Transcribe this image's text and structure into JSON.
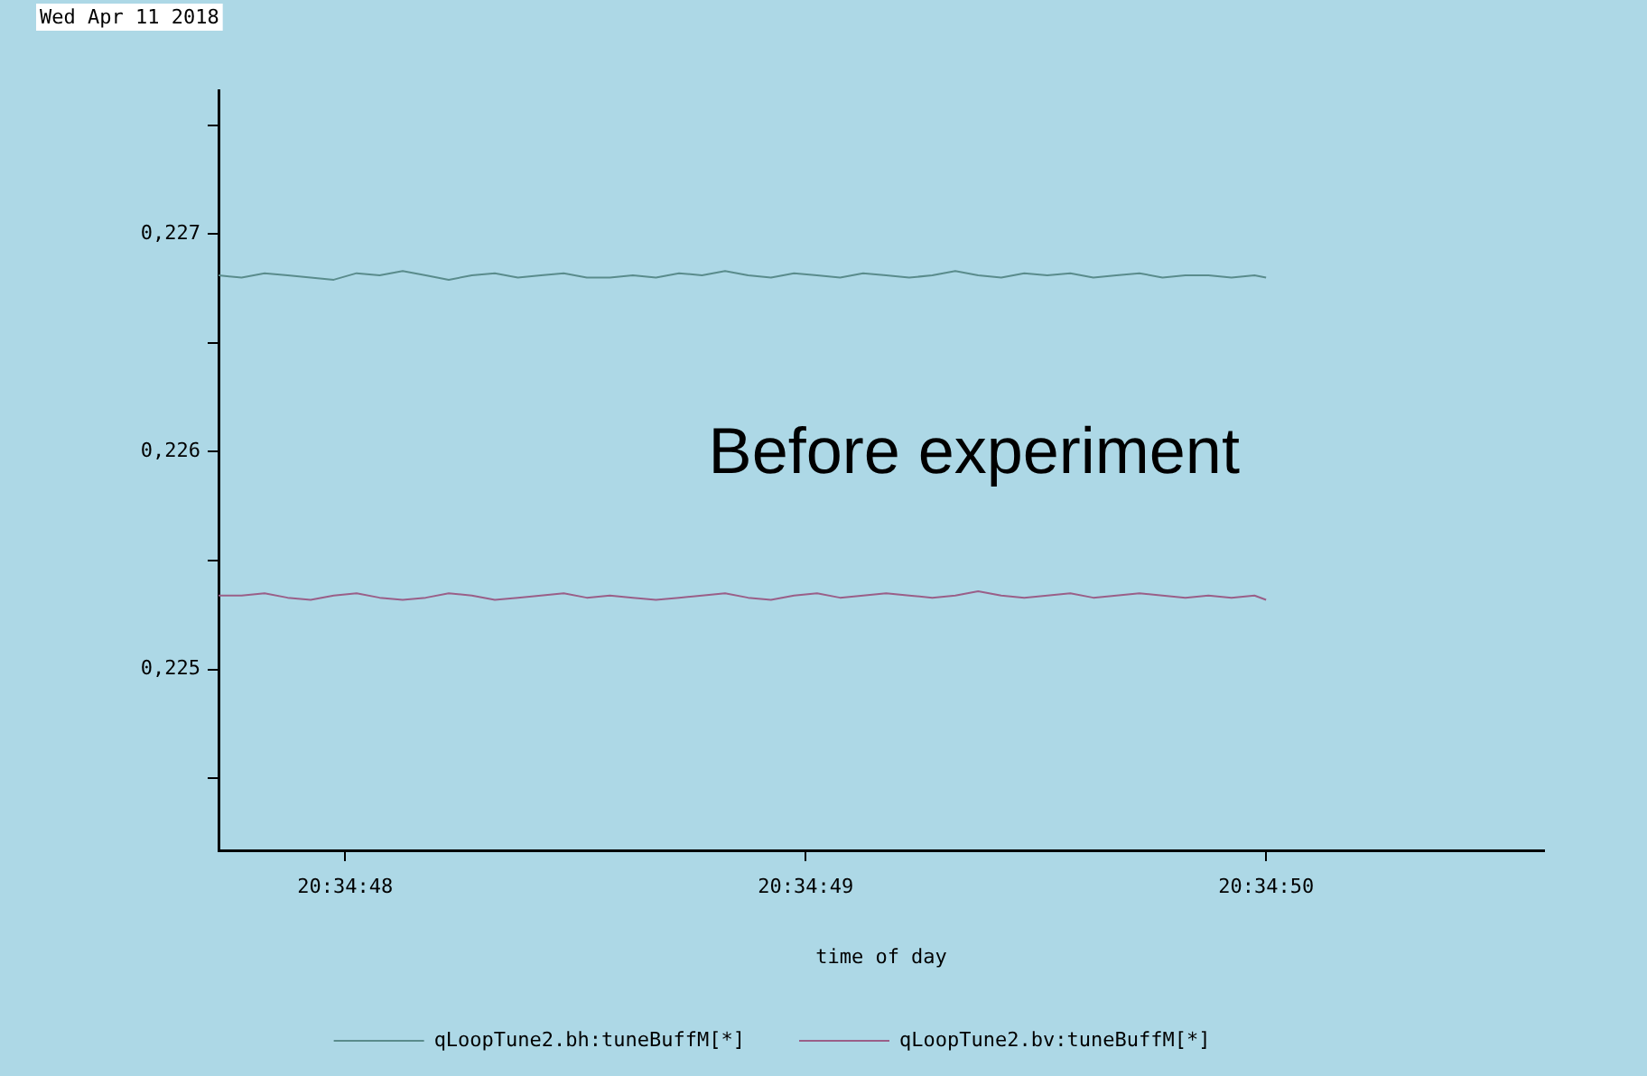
{
  "chart_data": {
    "type": "line",
    "title": "Wed Apr 11 2018",
    "xlabel": "time of day",
    "annotations": [
      "Before experiment"
    ],
    "x": [
      20.5799236,
      20.5799375,
      20.5799514,
      20.5799653,
      20.5799792,
      20.5799931,
      20.5800069,
      20.5800208,
      20.5800347,
      20.5800486,
      20.5800625,
      20.5800764,
      20.5800903,
      20.5801042,
      20.5801181,
      20.5801319,
      20.5801458,
      20.5801597,
      20.5801736,
      20.5801875,
      20.5802014,
      20.5802153,
      20.5802292,
      20.5802431,
      20.5802569,
      20.5802708,
      20.5802847,
      20.5802986,
      20.5803125,
      20.5803264,
      20.5803403,
      20.5803542,
      20.5803681,
      20.5803819,
      20.5803958,
      20.5804097,
      20.5804236,
      20.5804375,
      20.5804514,
      20.5804653,
      20.5804792,
      20.5804931,
      20.5805069,
      20.5805208,
      20.5805347,
      20.5805486,
      20.5805556
    ],
    "series": [
      {
        "name": "qLoopTune2.bh:tuneBuffM[*]",
        "color": "#5a8c8c",
        "values": [
          0.22681,
          0.2268,
          0.22682,
          0.22681,
          0.2268,
          0.22679,
          0.22682,
          0.22681,
          0.22683,
          0.22681,
          0.22679,
          0.22681,
          0.22682,
          0.2268,
          0.22681,
          0.22682,
          0.2268,
          0.2268,
          0.22681,
          0.2268,
          0.22682,
          0.22681,
          0.22683,
          0.22681,
          0.2268,
          0.22682,
          0.22681,
          0.2268,
          0.22682,
          0.22681,
          0.2268,
          0.22681,
          0.22683,
          0.22681,
          0.2268,
          0.22682,
          0.22681,
          0.22682,
          0.2268,
          0.22681,
          0.22682,
          0.2268,
          0.22681,
          0.22681,
          0.2268,
          0.22681,
          0.2268
        ]
      },
      {
        "name": "qLoopTune2.bv:tuneBuffM[*]",
        "color": "#9a5f88",
        "values": [
          0.22534,
          0.22534,
          0.22535,
          0.22533,
          0.22532,
          0.22534,
          0.22535,
          0.22533,
          0.22532,
          0.22533,
          0.22535,
          0.22534,
          0.22532,
          0.22533,
          0.22534,
          0.22535,
          0.22533,
          0.22534,
          0.22533,
          0.22532,
          0.22533,
          0.22534,
          0.22535,
          0.22533,
          0.22532,
          0.22534,
          0.22535,
          0.22533,
          0.22534,
          0.22535,
          0.22534,
          0.22533,
          0.22534,
          0.22536,
          0.22534,
          0.22533,
          0.22534,
          0.22535,
          0.22533,
          0.22534,
          0.22535,
          0.22534,
          0.22533,
          0.22534,
          0.22533,
          0.22534,
          0.22532
        ]
      }
    ],
    "xlim": [
      20.5799236,
      20.5807233
    ],
    "xticks": [
      {
        "value": 20.58,
        "label": "20:34:48"
      },
      {
        "value": 20.5802778,
        "label": "20:34:49"
      },
      {
        "value": 20.5805556,
        "label": "20:34:50"
      }
    ],
    "ylim": [
      0.22417,
      0.22766
    ],
    "yticks": [
      {
        "value": 0.2245,
        "label": null
      },
      {
        "value": 0.225,
        "label": "0,225"
      },
      {
        "value": 0.2255,
        "label": null
      },
      {
        "value": 0.226,
        "label": "0,226"
      },
      {
        "value": 0.2265,
        "label": null
      },
      {
        "value": 0.227,
        "label": "0,227"
      },
      {
        "value": 0.2275,
        "label": null
      }
    ],
    "grid": false,
    "legend": "bottom",
    "marker": "none",
    "line_style": "solid"
  }
}
